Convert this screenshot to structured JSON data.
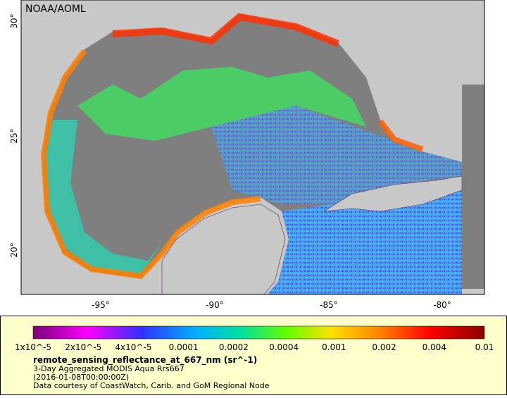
{
  "map": {
    "credit": "NOAA/AOML",
    "lat_labels": [
      "30°",
      "25°",
      "20°"
    ],
    "lon_labels": [
      "-95°",
      "-90°",
      "-85°",
      "-80°"
    ]
  },
  "legend": {
    "colorbar_labels": [
      "1x10^-5",
      "2x10^-5",
      "4x10^-5",
      "0.0001",
      "0.0002",
      "0.0004",
      "0.001",
      "0.002",
      "0.004",
      "0.01"
    ],
    "variable": "remote_sensing_reflectance_at_667_nm (sr^-1)",
    "description": "3-Day Aggregated MODIS Aqua Rrs667",
    "time": "(2016-01-08T00:00:00Z)",
    "source": "Data courtesy of CoastWatch, Carib. and GoM Regional Node"
  }
}
